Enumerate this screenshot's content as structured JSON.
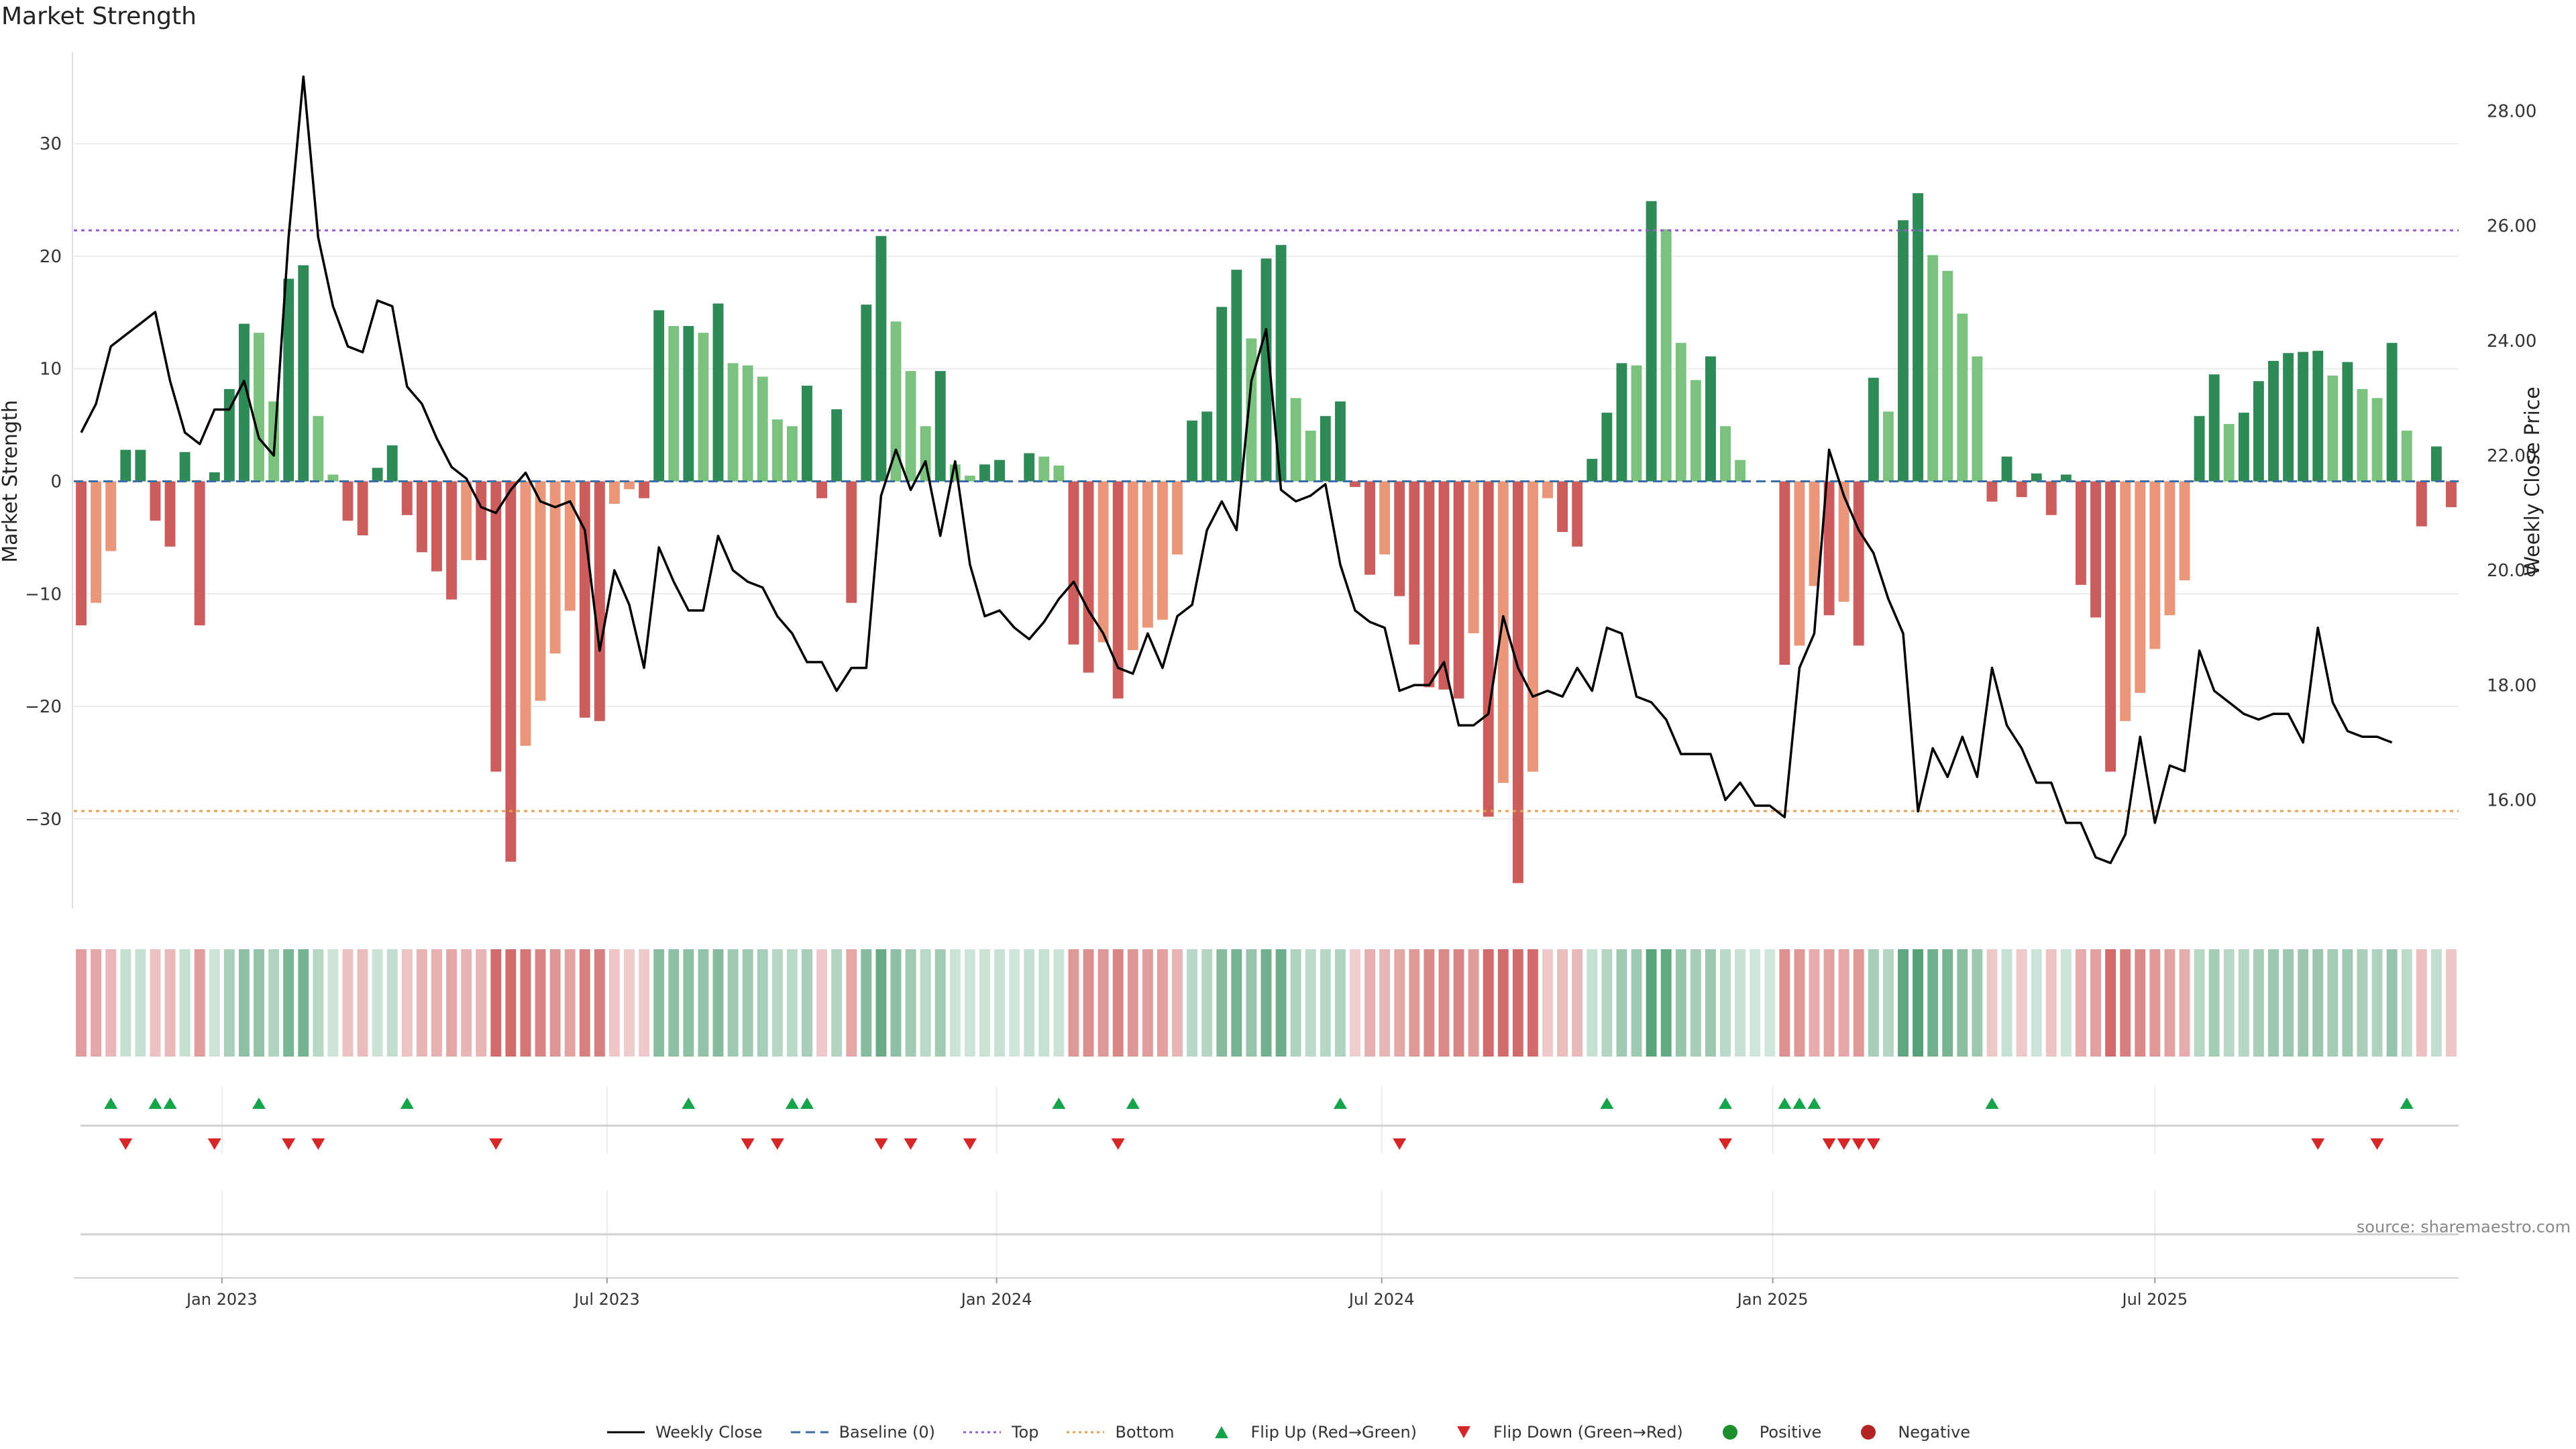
{
  "title": "Market Strength",
  "source": "source: sharemaestro.com",
  "chart_data": {
    "type": "bar",
    "y_left": {
      "label": "Market Strength",
      "ticks": [
        -30,
        -20,
        -10,
        0,
        10,
        20,
        30
      ],
      "lim": [
        -38,
        38
      ]
    },
    "y_right": {
      "label": "Weekly Close Price",
      "ticks": [
        "16.00",
        "18.00",
        "20.00",
        "22.00",
        "24.00",
        "26.00",
        "28.00"
      ],
      "lim": [
        14.1,
        29.0
      ]
    },
    "x_ticks": [
      {
        "label": "Jan 2023",
        "week": 9.5
      },
      {
        "label": "Jul 2023",
        "week": 35.5
      },
      {
        "label": "Jan 2024",
        "week": 61.8
      },
      {
        "label": "Jul 2024",
        "week": 87.8
      },
      {
        "label": "Jan 2025",
        "week": 114.2
      },
      {
        "label": "Jul 2025",
        "week": 140.0
      }
    ],
    "start_week_date": "2022-11-07",
    "top_line": 22.3,
    "bottom_line": -29.3,
    "strength": [
      -12.8,
      -10.8,
      -6.2,
      2.8,
      2.8,
      -3.5,
      -5.8,
      2.6,
      -12.8,
      0.8,
      8.2,
      14.0,
      13.2,
      7.1,
      18.0,
      19.2,
      5.8,
      0.6,
      -3.5,
      -4.8,
      1.2,
      3.2,
      -3.0,
      -6.3,
      -8.0,
      -10.5,
      -7.0,
      -7.0,
      -25.8,
      -33.8,
      -23.5,
      -19.5,
      -15.3,
      -11.5,
      -21.0,
      -21.3,
      -2.0,
      -0.7,
      -1.5,
      15.2,
      13.8,
      13.8,
      13.2,
      15.8,
      10.5,
      10.3,
      9.3,
      5.5,
      4.9,
      8.5,
      -1.5,
      6.4,
      -10.8,
      15.7,
      21.8,
      14.2,
      9.8,
      4.9,
      9.8,
      1.5,
      0.5,
      1.5,
      1.9,
      0,
      2.5,
      2.2,
      1.4,
      -14.5,
      -17.0,
      -14.3,
      -19.3,
      -15.0,
      -13.0,
      -12.3,
      -6.5,
      5.4,
      6.2,
      15.5,
      18.8,
      12.7,
      19.8,
      21.0,
      7.4,
      4.5,
      5.8,
      7.1,
      -0.5,
      -8.3,
      -6.5,
      -10.2,
      -14.5,
      -18.3,
      -18.5,
      -19.3,
      -13.5,
      -29.8,
      -26.8,
      -35.7,
      -25.8,
      -1.5,
      -4.5,
      -5.8,
      2.0,
      6.1,
      10.5,
      10.3,
      24.9,
      22.4,
      12.3,
      9.0,
      11.1,
      4.9,
      1.9,
      0,
      0,
      -16.3,
      -14.6,
      -9.3,
      -11.9,
      -10.7,
      -14.6,
      9.2,
      6.2,
      23.2,
      25.6,
      20.1,
      18.7,
      14.9,
      11.1,
      -1.8,
      2.2,
      -1.4,
      0.7,
      -3.0,
      0.6,
      -9.2,
      -12.1,
      -25.8,
      -21.3,
      -18.8,
      -14.9,
      -11.9,
      -8.8,
      5.8,
      9.5,
      5.1,
      6.1,
      8.9,
      10.7,
      11.4,
      11.5,
      11.6,
      9.4,
      10.6,
      8.2,
      7.4,
      12.3,
      4.5,
      -4.0,
      3.1,
      -2.3
    ],
    "weekly_close": [
      22.4,
      22.9,
      23.9,
      24.1,
      24.3,
      24.5,
      23.3,
      22.4,
      22.2,
      22.8,
      22.8,
      23.3,
      22.3,
      22.0,
      25.8,
      28.6,
      25.8,
      24.6,
      23.9,
      23.8,
      24.7,
      24.6,
      23.2,
      22.9,
      22.3,
      21.8,
      21.6,
      21.1,
      21.0,
      21.4,
      21.7,
      21.2,
      21.1,
      21.2,
      20.7,
      18.6,
      20.0,
      19.4,
      18.3,
      20.4,
      19.8,
      19.3,
      19.3,
      20.6,
      20.0,
      19.8,
      19.7,
      19.2,
      18.9,
      18.4,
      18.4,
      17.9,
      18.3,
      18.3,
      21.3,
      22.1,
      21.4,
      21.9,
      20.6,
      21.9,
      20.1,
      19.2,
      19.3,
      19.0,
      18.8,
      19.1,
      19.5,
      19.8,
      19.3,
      18.9,
      18.3,
      18.2,
      18.9,
      18.3,
      19.2,
      19.4,
      20.7,
      21.2,
      20.7,
      23.3,
      24.2,
      21.4,
      21.2,
      21.3,
      21.5,
      20.1,
      19.3,
      19.1,
      19.0,
      17.9,
      18.0,
      18.0,
      18.4,
      17.3,
      17.3,
      17.5,
      19.2,
      18.3,
      17.8,
      17.9,
      17.8,
      18.3,
      17.9,
      19.0,
      18.9,
      17.8,
      17.7,
      17.4,
      16.8,
      16.8,
      16.8,
      16.0,
      16.3,
      15.9,
      15.9,
      15.7,
      18.3,
      18.9,
      22.1,
      21.3,
      20.7,
      20.3,
      19.5,
      18.9,
      15.8,
      16.9,
      16.4,
      17.1,
      16.4,
      18.3,
      17.3,
      16.9,
      16.3,
      16.3,
      15.6,
      15.6,
      15.0,
      14.9,
      15.4,
      17.1,
      15.6,
      16.6,
      16.5,
      18.6,
      17.9,
      17.7,
      17.5,
      17.4,
      17.5,
      17.5,
      17.0,
      19.0,
      17.7,
      17.2,
      17.1,
      17.1,
      17.0
    ],
    "flip_up_weeks": [
      2,
      5,
      6,
      12,
      22,
      41,
      48,
      49,
      66,
      71,
      85,
      103,
      111,
      115,
      116,
      117,
      129,
      157
    ],
    "flip_down_weeks": [
      3,
      9,
      14,
      16,
      28,
      45,
      47,
      54,
      56,
      60,
      70,
      89,
      111,
      118,
      119,
      120,
      121,
      151,
      155
    ],
    "legend": [
      {
        "label": "Weekly Close",
        "marker": "line",
        "color": "#000000"
      },
      {
        "label": "Baseline (0)",
        "marker": "dash",
        "color": "#3a6ea5"
      },
      {
        "label": "Top",
        "marker": "dot",
        "color": "#9b59d0"
      },
      {
        "label": "Bottom",
        "marker": "dot",
        "color": "#e8a04a"
      },
      {
        "label": "Flip Up (Red→Green)",
        "marker": "triangle-up",
        "color": "#16a34a"
      },
      {
        "label": "Flip Down (Green→Red)",
        "marker": "triangle-down",
        "color": "#d62728"
      },
      {
        "label": "Positive",
        "marker": "circle",
        "color": "#1e8f2e"
      },
      {
        "label": "Negative",
        "marker": "circle",
        "color": "#b52424"
      }
    ]
  },
  "colors": {
    "strong_green": "#2e8b57",
    "light_green": "#7bc27e",
    "strong_red": "#cd5c5c",
    "light_red": "#e9967a",
    "line": "#000000",
    "grid": "#ececec"
  }
}
